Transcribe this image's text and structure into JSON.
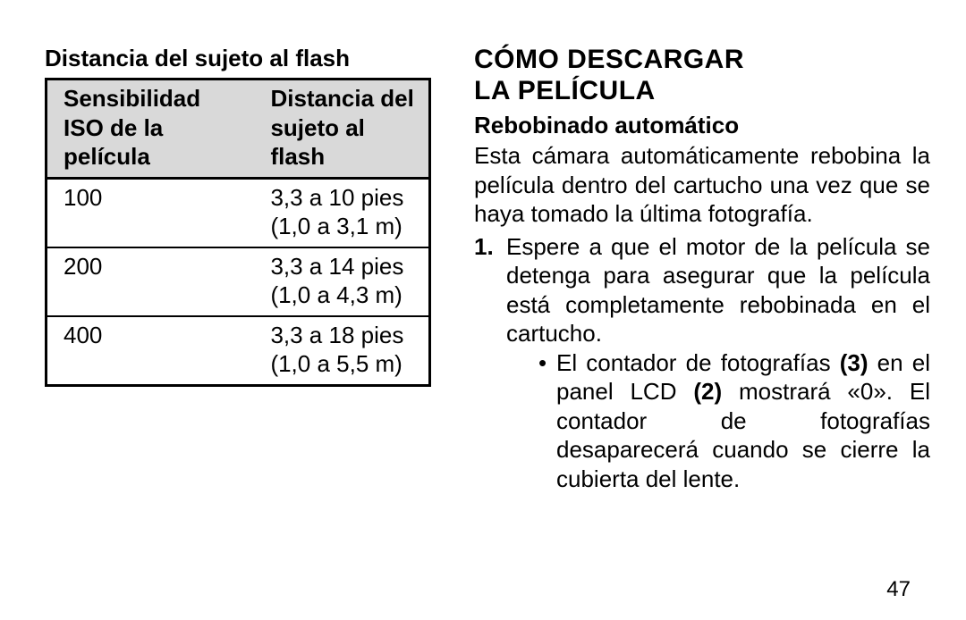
{
  "left": {
    "table_title": "Distancia del sujeto al flash",
    "table": {
      "header_col1": "Sensibilidad ISO de la película",
      "header_col2": "Distancia del sujeto al flash",
      "rows": [
        {
          "iso": "100",
          "dist": "3,3 a 10 pies (1,0 a 3,1 m)"
        },
        {
          "iso": "200",
          "dist": "3,3 a 14 pies (1,0 a 4,3 m)"
        },
        {
          "iso": "400",
          "dist": "3,3 a 18 pies (1,0 a 5,5 m)"
        }
      ],
      "header_bg": "#d9d9d9",
      "border_color": "#000000",
      "font_size": 26
    }
  },
  "right": {
    "section_title_line1": "CÓMO DESCARGAR",
    "section_title_line2": "LA PELÍCULA",
    "subheading": "Rebobinado automático",
    "paragraph": "Esta cámara automáticamente rebobina la película dentro del cartucho una vez que se haya tomado la última fotografía.",
    "step1_num": "1.",
    "step1_text": "Espere a que el motor de la película se detenga para asegurar que la película está completamente rebobinada en el cartucho.",
    "bullet_prefix": "El contador de fotografías ",
    "bullet_bold1": "(3)",
    "bullet_mid1": " en el panel LCD ",
    "bullet_bold2": "(2)",
    "bullet_mid2": " mostrará «0». El contador de fotografías desaparecerá cuando se cierre la cubierta del lente."
  },
  "page_number": "47",
  "colors": {
    "background": "#ffffff",
    "text": "#000000"
  },
  "fonts": {
    "family": "Arial, Helvetica, sans-serif",
    "body_size": 26,
    "section_title_size": 30
  }
}
